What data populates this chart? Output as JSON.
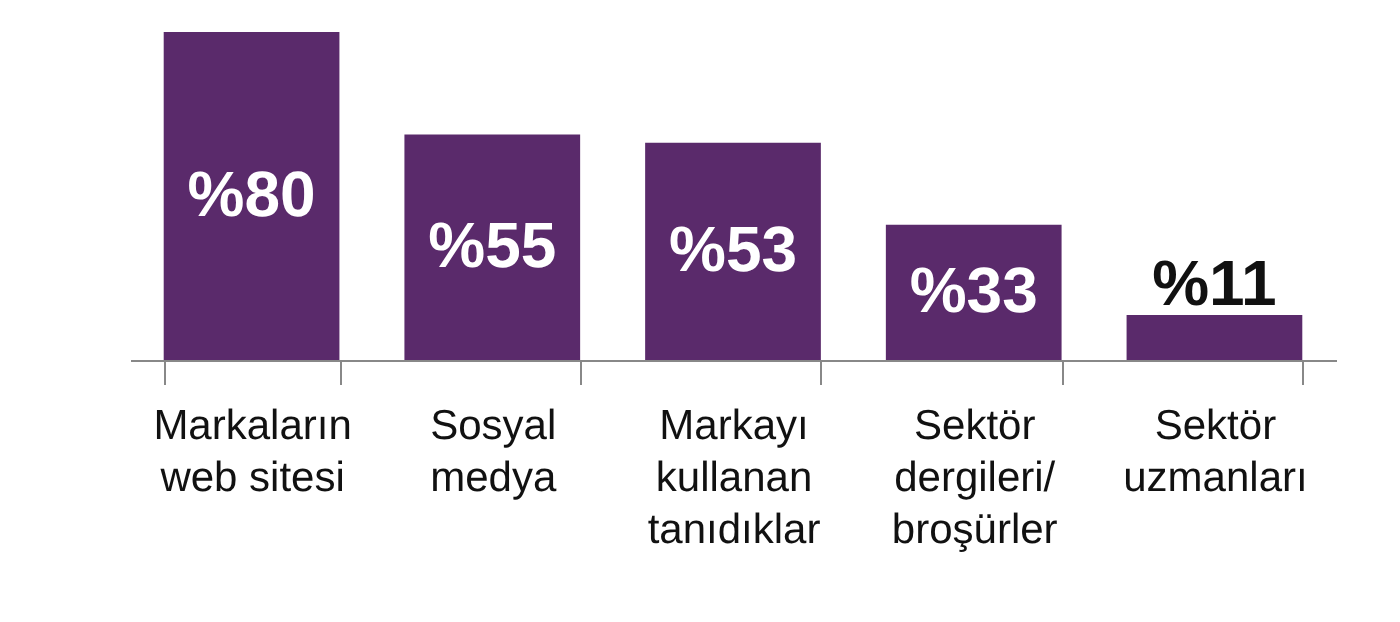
{
  "chart_data": {
    "type": "bar",
    "categories": [
      "Markaların\nweb sitesi",
      "Sosyal\nmedya",
      "Markayı\nkullanan\ntanıdıklar",
      "Sektör\ndergileri/\nbroşürler",
      "Sektör\nuzmanları"
    ],
    "values": [
      80,
      55,
      53,
      33,
      11
    ],
    "value_labels": [
      "%80",
      "%55",
      "%53",
      "%33",
      "%11"
    ],
    "color": "#5a2a6b",
    "grid": false
  }
}
